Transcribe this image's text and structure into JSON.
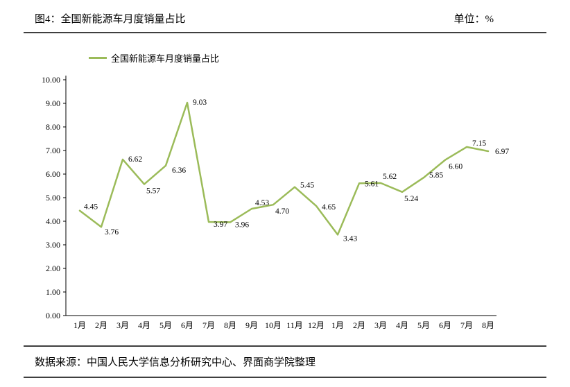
{
  "header": {
    "title": "图4：全国新能源车月度销量占比",
    "unit": "单位：%"
  },
  "chart_data": {
    "type": "line",
    "title": "全国新能源车月度销量占比",
    "legend": "全国新能源车月度销量占比",
    "categories": [
      "1月",
      "2月",
      "3月",
      "4月",
      "5月",
      "6月",
      "7月",
      "8月",
      "9月",
      "10月",
      "11月",
      "12月",
      "1月",
      "2月",
      "3月",
      "4月",
      "5月",
      "6月",
      "7月",
      "8月"
    ],
    "values": [
      4.45,
      3.76,
      6.62,
      5.57,
      6.36,
      9.03,
      3.97,
      3.96,
      4.53,
      4.7,
      5.45,
      4.65,
      3.43,
      5.61,
      5.62,
      5.24,
      5.85,
      6.6,
      7.15,
      6.97
    ],
    "xlabel": "",
    "ylabel": "",
    "ylim": [
      0,
      10
    ],
    "ytick_step": 1,
    "ytick_decimals": 2,
    "data_label_decimals": 2,
    "line_color": "#9BBB59",
    "grid": false,
    "data_labels": true,
    "legend_position": "top-left"
  },
  "footer": {
    "source": "数据来源：中国人民大学信息分析研究中心、界面商学院整理"
  }
}
